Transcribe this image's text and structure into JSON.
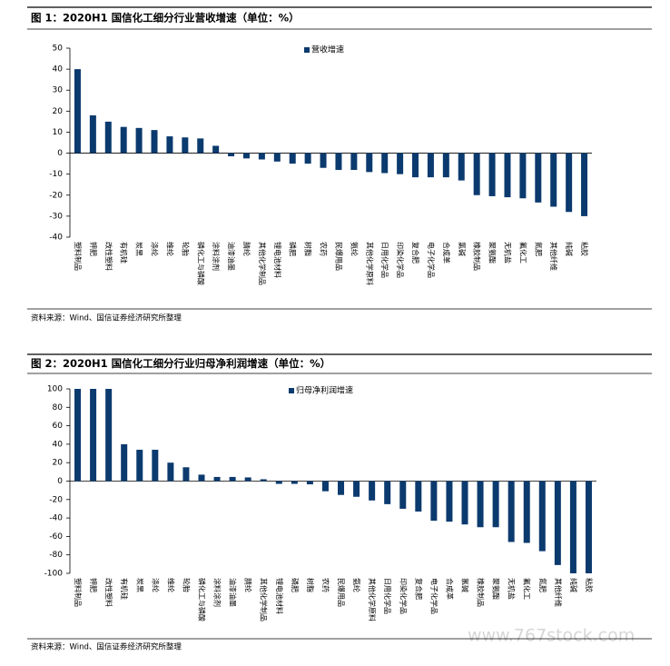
{
  "chart_data": [
    {
      "type": "bar",
      "title": "图 1：2020H1 国信化工细分行业营收增速（单位：%）",
      "source": "资料来源：Wind、国信证券经济研究所整理",
      "categories": [
        "塑料制品",
        "钾肥",
        "改性塑料",
        "有机硅",
        "炭黑",
        "涤纶",
        "维纶",
        "轮胎",
        "磷化工与磷酸",
        "涂料涂剂",
        "油漆油墨",
        "腈纶",
        "其他化学制品",
        "锂电池材料",
        "磷肥",
        "树脂",
        "农药",
        "民爆用品",
        "氨纶",
        "其他化学原料",
        "日用化学品",
        "印染化学品",
        "复合肥",
        "电子化学品",
        "合成革",
        "氯碱",
        "橡胶制品",
        "聚氨酯",
        "无机盐",
        "氟化工",
        "氮肥",
        "其他纤维",
        "纯碱",
        "粘胶"
      ],
      "series": [
        {
          "name": "营收增速",
          "color": "#0b3a6e",
          "values": [
            40,
            18,
            15,
            12.5,
            12,
            11,
            8,
            7.5,
            7,
            3.5,
            -1.5,
            -2.5,
            -3,
            -4,
            -5,
            -5,
            -7,
            -8,
            -8,
            -9,
            -9.5,
            -10,
            -11.5,
            -11.5,
            -11.5,
            -13,
            -20,
            -20.5,
            -21,
            -21.5,
            -23.5,
            -25.5,
            -28,
            -30
          ]
        }
      ],
      "ylim": [
        -40,
        50
      ],
      "yticks": [
        -40,
        -30,
        -20,
        -10,
        0,
        10,
        20,
        30,
        40,
        50
      ]
    },
    {
      "type": "bar",
      "title": "图 2：2020H1 国信化工细分行业归母净利润增速（单位：%）",
      "source": "资料来源：Wind、国信证券经济研究所整理",
      "categories": [
        "塑料制品",
        "钾肥",
        "改性塑料",
        "有机硅",
        "炭黑",
        "涤纶",
        "维纶",
        "轮胎",
        "磷化工与磷酸",
        "涂料涂剂",
        "油漆油墨",
        "腈纶",
        "其他化学制品",
        "锂电池材料",
        "磷肥",
        "树脂",
        "农药",
        "民爆用品",
        "氨纶",
        "其他化学原料",
        "日用化学品",
        "印染化学品",
        "复合肥",
        "电子化学品",
        "合成革",
        "氯碱",
        "橡胶制品",
        "聚氨酯",
        "无机盐",
        "氟化工",
        "氮肥",
        "其他纤维",
        "纯碱",
        "粘胶"
      ],
      "series": [
        {
          "name": "归母净利润增速",
          "color": "#0b3a6e",
          "values": [
            100,
            100,
            100,
            40,
            34,
            34,
            20,
            15,
            7,
            4.5,
            4.5,
            4,
            2,
            -3,
            -3,
            -3.5,
            -11,
            -15,
            -17,
            -21,
            -25,
            -30,
            -33,
            -43,
            -44,
            -47,
            -50,
            -50,
            -66,
            -67,
            -76,
            -91,
            -100,
            -100
          ]
        }
      ],
      "ylim": [
        -100,
        100
      ],
      "yticks": [
        -100,
        -80,
        -60,
        -40,
        -20,
        0,
        20,
        40,
        60,
        80,
        100
      ]
    }
  ],
  "watermark": "www.767stock.com"
}
